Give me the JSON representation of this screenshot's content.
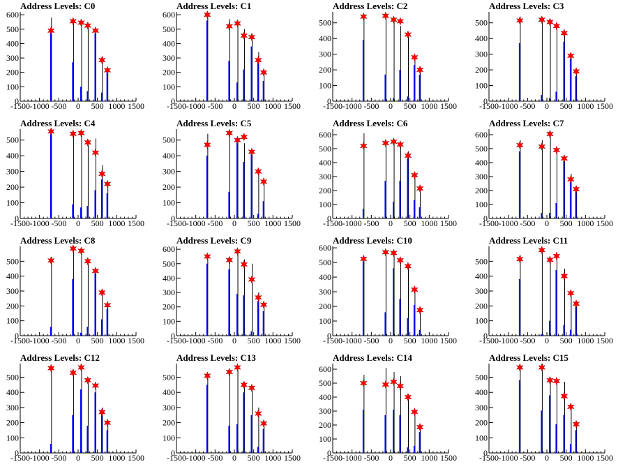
{
  "colors": {
    "blue": "#0000ff",
    "black": "#000000",
    "marker": "#ff0000"
  },
  "chart_data": [
    {
      "type": "bar",
      "title": "Address Levels: C0",
      "xlim": [
        -1500,
        1500
      ],
      "ylim": [
        0,
        620
      ],
      "xticks": [
        "-1500",
        "-1000",
        "-500",
        "0",
        "500",
        "1000",
        "1500"
      ],
      "yticks": [
        "0",
        "100",
        "200",
        "300",
        "400",
        "500",
        "600"
      ],
      "x": [
        -700,
        -130,
        80,
        250,
        450,
        620,
        760
      ],
      "black": [
        580,
        570,
        560,
        540,
        490,
        310,
        220
      ],
      "blue": [
        480,
        270,
        100,
        70,
        470,
        60,
        210
      ],
      "peaks": [
        490,
        555,
        545,
        525,
        490,
        285,
        215
      ]
    },
    {
      "type": "bar",
      "title": "Address Levels: C1",
      "xlim": [
        -1500,
        1500
      ],
      "ylim": [
        0,
        620
      ],
      "xticks": [
        "-1500",
        "-1000",
        "-500",
        "0",
        "500",
        "1000",
        "1500"
      ],
      "yticks": [
        "0",
        "100",
        "200",
        "300",
        "400",
        "500",
        "600"
      ],
      "x": [
        -700,
        -130,
        80,
        250,
        450,
        620,
        760
      ],
      "black": [
        610,
        570,
        560,
        500,
        470,
        340,
        200
      ],
      "blue": [
        560,
        280,
        130,
        220,
        380,
        270,
        140
      ],
      "peaks": [
        600,
        520,
        540,
        455,
        445,
        285,
        200
      ]
    },
    {
      "type": "bar",
      "title": "Address Levels: C2",
      "xlim": [
        -1500,
        1500
      ],
      "ylim": [
        0,
        570
      ],
      "xticks": [
        "-1500",
        "-1000",
        "-500",
        "0",
        "500",
        "1000",
        "1500"
      ],
      "yticks": [
        "0",
        "100",
        "200",
        "300",
        "400",
        "500"
      ],
      "x": [
        -700,
        -130,
        80,
        250,
        450,
        620,
        760
      ],
      "black": [
        550,
        560,
        520,
        480,
        420,
        290,
        210
      ],
      "blue": [
        390,
        170,
        20,
        200,
        30,
        230,
        170
      ],
      "peaks": [
        540,
        545,
        520,
        510,
        425,
        280,
        200
      ]
    },
    {
      "type": "bar",
      "title": "Address Levels: C3",
      "xlim": [
        -1500,
        1500
      ],
      "ylim": [
        0,
        570
      ],
      "xticks": [
        "-1500",
        "-1000",
        "-500",
        "0",
        "500",
        "1000",
        "1500"
      ],
      "yticks": [
        "0",
        "100",
        "200",
        "300",
        "400",
        "500"
      ],
      "x": [
        -700,
        -130,
        80,
        250,
        450,
        620,
        760
      ],
      "black": [
        540,
        530,
        520,
        500,
        440,
        300,
        200
      ],
      "blue": [
        370,
        40,
        20,
        60,
        380,
        270,
        160
      ],
      "peaks": [
        515,
        520,
        505,
        480,
        435,
        290,
        190
      ]
    },
    {
      "type": "bar",
      "title": "Address Levels: C4",
      "xlim": [
        -1500,
        1500
      ],
      "ylim": [
        0,
        570
      ],
      "xticks": [
        "-1500",
        "-1000",
        "-500",
        "0",
        "500",
        "1000",
        "1500"
      ],
      "yticks": [
        "0",
        "100",
        "200",
        "300",
        "400",
        "500"
      ],
      "x": [
        -700,
        -130,
        80,
        250,
        450,
        620,
        760
      ],
      "black": [
        560,
        550,
        530,
        490,
        510,
        340,
        230
      ],
      "blue": [
        540,
        90,
        70,
        80,
        180,
        250,
        160
      ],
      "peaks": [
        555,
        540,
        545,
        485,
        420,
        285,
        220
      ]
    },
    {
      "type": "bar",
      "title": "Address Levels: C5",
      "xlim": [
        -1500,
        1500
      ],
      "ylim": [
        0,
        570
      ],
      "xticks": [
        "-1500",
        "-1000",
        "-500",
        "0",
        "500",
        "1000",
        "1500"
      ],
      "yticks": [
        "0",
        "100",
        "200",
        "300",
        "400",
        "500"
      ],
      "x": [
        -700,
        -130,
        80,
        250,
        450,
        620,
        760
      ],
      "black": [
        540,
        550,
        510,
        480,
        440,
        310,
        240
      ],
      "blue": [
        400,
        170,
        500,
        360,
        410,
        30,
        110
      ],
      "peaks": [
        470,
        545,
        500,
        520,
        425,
        300,
        235
      ]
    },
    {
      "type": "bar",
      "title": "Address Levels: C6",
      "xlim": [
        -1500,
        1500
      ],
      "ylim": [
        0,
        640
      ],
      "xticks": [
        "-1500",
        "-1000",
        "-500",
        "0",
        "500",
        "1000",
        "1500"
      ],
      "yticks": [
        "0",
        "100",
        "200",
        "300",
        "400",
        "500",
        "600"
      ],
      "x": [
        -700,
        -130,
        80,
        250,
        450,
        620,
        760
      ],
      "black": [
        610,
        560,
        560,
        520,
        480,
        330,
        230
      ],
      "blue": [
        70,
        270,
        120,
        270,
        430,
        130,
        80
      ],
      "peaks": [
        520,
        540,
        550,
        530,
        450,
        310,
        215
      ]
    },
    {
      "type": "bar",
      "title": "Address Levels: C7",
      "xlim": [
        -1500,
        1500
      ],
      "ylim": [
        0,
        640
      ],
      "xticks": [
        "-1500",
        "-1000",
        "-500",
        "0",
        "500",
        "1000",
        "1500"
      ],
      "yticks": [
        "0",
        "100",
        "200",
        "300",
        "400",
        "500",
        "600"
      ],
      "x": [
        -700,
        -130,
        80,
        250,
        450,
        620,
        760
      ],
      "black": [
        560,
        560,
        620,
        500,
        440,
        320,
        220
      ],
      "blue": [
        480,
        40,
        40,
        110,
        410,
        260,
        210
      ],
      "peaks": [
        525,
        515,
        605,
        490,
        430,
        280,
        210
      ]
    },
    {
      "type": "bar",
      "title": "Address Levels: C8",
      "xlim": [
        -1500,
        1500
      ],
      "ylim": [
        0,
        600
      ],
      "xticks": [
        "-1500",
        "-1000",
        "-500",
        "0",
        "500",
        "1000",
        "1500"
      ],
      "yticks": [
        "0",
        "100",
        "200",
        "300",
        "400",
        "500"
      ],
      "x": [
        -700,
        -130,
        80,
        250,
        450,
        620,
        760
      ],
      "black": [
        530,
        600,
        580,
        510,
        450,
        300,
        210
      ],
      "blue": [
        60,
        380,
        20,
        60,
        430,
        110,
        180
      ],
      "peaks": [
        505,
        585,
        570,
        500,
        435,
        290,
        205
      ]
    },
    {
      "type": "bar",
      "title": "Address Levels: C9",
      "xlim": [
        -1500,
        1500
      ],
      "ylim": [
        0,
        620
      ],
      "xticks": [
        "-1500",
        "-1000",
        "-500",
        "0",
        "500",
        "1000",
        "1500"
      ],
      "yticks": [
        "0",
        "100",
        "200",
        "300",
        "400",
        "500",
        "600"
      ],
      "x": [
        -700,
        -130,
        80,
        250,
        450,
        620,
        760
      ],
      "black": [
        560,
        540,
        600,
        530,
        500,
        300,
        230
      ],
      "blue": [
        500,
        460,
        290,
        280,
        30,
        240,
        170
      ],
      "peaks": [
        550,
        525,
        585,
        495,
        390,
        265,
        215
      ]
    },
    {
      "type": "bar",
      "title": "Address Levels: C10",
      "xlim": [
        -1500,
        1500
      ],
      "ylim": [
        0,
        610
      ],
      "xticks": [
        "-1500",
        "-1000",
        "-500",
        "0",
        "500",
        "1000",
        "1500"
      ],
      "yticks": [
        "0",
        "100",
        "200",
        "300",
        "400",
        "500",
        "600"
      ],
      "x": [
        -700,
        -130,
        80,
        250,
        450,
        620,
        760
      ],
      "black": [
        530,
        560,
        570,
        520,
        490,
        330,
        190
      ],
      "blue": [
        530,
        160,
        460,
        250,
        120,
        210,
        40
      ],
      "peaks": [
        525,
        570,
        565,
        515,
        475,
        315,
        175
      ]
    },
    {
      "type": "bar",
      "title": "Address Levels: C11",
      "xlim": [
        -1500,
        1500
      ],
      "ylim": [
        0,
        600
      ],
      "xticks": [
        "-1500",
        "-1000",
        "-500",
        "0",
        "500",
        "1000",
        "1500"
      ],
      "yticks": [
        "0",
        "100",
        "200",
        "300",
        "400",
        "500"
      ],
      "x": [
        -700,
        -130,
        80,
        250,
        450,
        620,
        760
      ],
      "black": [
        540,
        590,
        520,
        560,
        450,
        290,
        220
      ],
      "blue": [
        380,
        10,
        100,
        440,
        70,
        40,
        200
      ],
      "peaks": [
        515,
        575,
        510,
        535,
        400,
        285,
        215
      ]
    },
    {
      "type": "bar",
      "title": "Address Levels: C12",
      "xlim": [
        -1500,
        1500
      ],
      "ylim": [
        0,
        590
      ],
      "xticks": [
        "-1500",
        "-1000",
        "-500",
        "0",
        "500",
        "1000",
        "1500"
      ],
      "yticks": [
        "0",
        "100",
        "200",
        "300",
        "400",
        "500"
      ],
      "x": [
        -700,
        -130,
        80,
        250,
        450,
        620,
        760
      ],
      "black": [
        570,
        550,
        580,
        490,
        450,
        300,
        210
      ],
      "blue": [
        60,
        250,
        420,
        180,
        400,
        260,
        150
      ],
      "peaks": [
        560,
        530,
        565,
        480,
        445,
        270,
        200
      ]
    },
    {
      "type": "bar",
      "title": "Address Levels: C13",
      "xlim": [
        -1500,
        1500
      ],
      "ylim": [
        0,
        590
      ],
      "xticks": [
        "-1500",
        "-1000",
        "-500",
        "0",
        "500",
        "1000",
        "1500"
      ],
      "yticks": [
        "0",
        "100",
        "200",
        "300",
        "400",
        "500"
      ],
      "x": [
        -700,
        -130,
        80,
        250,
        450,
        620,
        760
      ],
      "black": [
        520,
        550,
        580,
        470,
        440,
        300,
        210
      ],
      "blue": [
        450,
        180,
        190,
        400,
        250,
        40,
        160
      ],
      "peaks": [
        510,
        535,
        565,
        450,
        430,
        260,
        195
      ]
    },
    {
      "type": "bar",
      "title": "Address Levels: C14",
      "xlim": [
        -1500,
        1500
      ],
      "ylim": [
        0,
        640
      ],
      "xticks": [
        "-1500",
        "-1000",
        "-500",
        "0",
        "500",
        "1000",
        "1500"
      ],
      "yticks": [
        "0",
        "100",
        "200",
        "300",
        "400",
        "500",
        "600"
      ],
      "x": [
        -700,
        -130,
        80,
        250,
        450,
        620,
        760
      ],
      "black": [
        560,
        610,
        580,
        550,
        420,
        310,
        190
      ],
      "blue": [
        310,
        270,
        310,
        270,
        40,
        50,
        150
      ],
      "peaks": [
        500,
        490,
        510,
        480,
        400,
        295,
        185
      ]
    },
    {
      "type": "bar",
      "title": "Address Levels: C15",
      "xlim": [
        -1500,
        1500
      ],
      "ylim": [
        0,
        590
      ],
      "xticks": [
        "-1500",
        "-1000",
        "-500",
        "0",
        "500",
        "1000",
        "1500"
      ],
      "yticks": [
        "0",
        "100",
        "200",
        "300",
        "400",
        "500"
      ],
      "x": [
        -700,
        -130,
        80,
        250,
        450,
        620,
        760
      ],
      "black": [
        580,
        590,
        500,
        490,
        470,
        320,
        190
      ],
      "blue": [
        480,
        280,
        380,
        190,
        250,
        60,
        150
      ],
      "peaks": [
        565,
        565,
        480,
        475,
        375,
        305,
        190
      ]
    }
  ]
}
